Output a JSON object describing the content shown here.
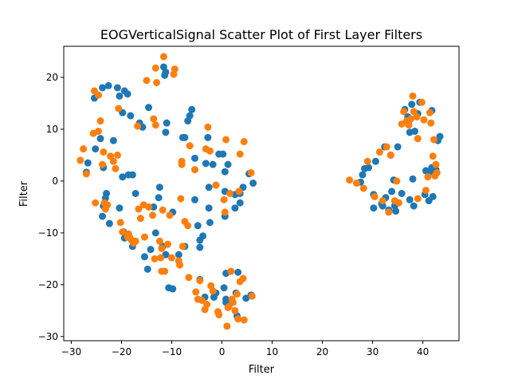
{
  "chart_data": {
    "type": "scatter",
    "title": "EOGVerticalSignal Scatter Plot of First Layer Filters",
    "xlabel": "Filter",
    "ylabel": "Filter",
    "xlim": [
      -31.5,
      47.2
    ],
    "ylim": [
      -30.8,
      26.0
    ],
    "xticks": [
      -30,
      -20,
      -10,
      0,
      10,
      20,
      30,
      40
    ],
    "yticks": [
      -30,
      -20,
      -10,
      0,
      10,
      20
    ],
    "grid": false,
    "legend": null,
    "series": [
      {
        "color": "#1f77b4",
        "points": [
          [
            -27.0,
            1.7
          ],
          [
            -26.7,
            3.5
          ],
          [
            -25.4,
            16.0
          ],
          [
            -25.2,
            6.2
          ],
          [
            -24.2,
            8.2
          ],
          [
            -23.8,
            18.0
          ],
          [
            -22.6,
            18.4
          ],
          [
            -23.6,
            2.6
          ],
          [
            -23.0,
            -2.4
          ],
          [
            -23.2,
            -3.3
          ],
          [
            -23.6,
            -4.8
          ],
          [
            -23.8,
            -6.8
          ],
          [
            -22.4,
            -8.2
          ],
          [
            -21.6,
            7.8
          ],
          [
            -20.8,
            18.0
          ],
          [
            -20.4,
            16.4
          ],
          [
            -19.8,
            13.2
          ],
          [
            -19.4,
            17.4
          ],
          [
            -18.8,
            16.8
          ],
          [
            -18.2,
            12.6
          ],
          [
            -18.6,
            1.2
          ],
          [
            -17.8,
            1.2
          ],
          [
            -19.8,
            0.8
          ],
          [
            -20.4,
            -5.2
          ],
          [
            -19.6,
            -9.8
          ],
          [
            -19.4,
            -11.0
          ],
          [
            -17.8,
            -12.6
          ],
          [
            -17.2,
            -2.4
          ],
          [
            -16.4,
            11.2
          ],
          [
            -15.8,
            10.4
          ],
          [
            -15.4,
            -14.6
          ],
          [
            -14.8,
            -17.0
          ],
          [
            -14.6,
            14.2
          ],
          [
            -14.2,
            -13.2
          ],
          [
            -13.6,
            -5.0
          ],
          [
            -13.2,
            -10.0
          ],
          [
            -12.6,
            -3.2
          ],
          [
            -12.4,
            -1.2
          ],
          [
            -11.6,
            22.0
          ],
          [
            -11.4,
            20.4
          ],
          [
            -11.2,
            21.0
          ],
          [
            -11.0,
            11.2
          ],
          [
            -11.2,
            9.4
          ],
          [
            -11.8,
            -12.6
          ],
          [
            -11.2,
            -14.2
          ],
          [
            -10.6,
            -20.6
          ],
          [
            -9.8,
            -6.0
          ],
          [
            -9.8,
            -20.8
          ],
          [
            -8.6,
            -14.2
          ],
          [
            -7.8,
            8.4
          ],
          [
            -7.4,
            8.4
          ],
          [
            -7.4,
            -12.6
          ],
          [
            -6.8,
            11.6
          ],
          [
            -6.4,
            12.6
          ],
          [
            -6.0,
            13.8
          ],
          [
            -5.4,
            4.4
          ],
          [
            -5.4,
            -3.6
          ],
          [
            -4.8,
            -8.6
          ],
          [
            -4.4,
            -19.0
          ],
          [
            -4.4,
            -11.4
          ],
          [
            -4.4,
            -12.8
          ],
          [
            -3.8,
            -10.6
          ],
          [
            -3.4,
            -22.4
          ],
          [
            -3.2,
            3.4
          ],
          [
            -2.8,
            8.4
          ],
          [
            -2.6,
            -1.2
          ],
          [
            -2.6,
            -5.2
          ],
          [
            -2.4,
            -8.0
          ],
          [
            -1.8,
            3.2
          ],
          [
            -1.6,
            -22.4
          ],
          [
            -1.2,
            -21.6
          ],
          [
            -0.6,
            5.2
          ],
          [
            0.2,
            5.2
          ],
          [
            0.6,
            1.8
          ],
          [
            0.6,
            -2.0
          ],
          [
            0.6,
            -6.8
          ],
          [
            0.8,
            -22.8
          ],
          [
            0.8,
            -17.8
          ],
          [
            0.4,
            -20.6
          ],
          [
            0.8,
            -23.4
          ],
          [
            1.2,
            3.2
          ],
          [
            2.6,
            -2.6
          ],
          [
            2.6,
            -5.2
          ],
          [
            2.8,
            -21.6
          ],
          [
            3.0,
            -26.0
          ],
          [
            3.2,
            -17.6
          ],
          [
            3.6,
            -2.4
          ],
          [
            3.6,
            -4.2
          ],
          [
            4.2,
            -1.2
          ],
          [
            4.8,
            -22.6
          ],
          [
            5.4,
            1.4
          ],
          [
            5.8,
            -22.0
          ],
          [
            6.2,
            -0.4
          ],
          [
            27.6,
            -0.2
          ],
          [
            28.0,
            1.2
          ],
          [
            28.4,
            2.4
          ],
          [
            29.2,
            2.6
          ],
          [
            30.2,
            -2.6
          ],
          [
            30.2,
            -5.2
          ],
          [
            30.6,
            3.8
          ],
          [
            31.8,
            -4.4
          ],
          [
            32.0,
            -4.8
          ],
          [
            32.4,
            6.6
          ],
          [
            32.6,
            -3.2
          ],
          [
            33.2,
            -5.6
          ],
          [
            33.6,
            5.0
          ],
          [
            33.8,
            -2.0
          ],
          [
            34.2,
            0.2
          ],
          [
            34.4,
            -4.8
          ],
          [
            34.6,
            -5.8
          ],
          [
            35.0,
            6.6
          ],
          [
            35.8,
            -2.4
          ],
          [
            36.4,
            13.8
          ],
          [
            37.0,
            12.4
          ],
          [
            37.2,
            11.6
          ],
          [
            37.4,
            9.4
          ],
          [
            37.4,
            -3.6
          ],
          [
            37.8,
            14.8
          ],
          [
            38.0,
            0.4
          ],
          [
            38.2,
            -4.8
          ],
          [
            38.4,
            9.6
          ],
          [
            38.8,
            12.4
          ],
          [
            39.0,
            13.0
          ],
          [
            39.4,
            15.2
          ],
          [
            40.4,
            -2.6
          ],
          [
            40.6,
            2.0
          ],
          [
            41.2,
            -3.8
          ],
          [
            41.6,
            1.8
          ],
          [
            41.8,
            13.6
          ],
          [
            41.8,
            2.6
          ],
          [
            42.0,
            -3.0
          ],
          [
            42.6,
            2.2
          ],
          [
            43.0,
            7.8
          ],
          [
            43.4,
            8.6
          ]
        ]
      },
      {
        "color": "#ff7f0e",
        "points": [
          [
            -28.2,
            4.0
          ],
          [
            -27.6,
            6.2
          ],
          [
            -27.0,
            1.4
          ],
          [
            -25.6,
            9.2
          ],
          [
            -25.4,
            17.4
          ],
          [
            -25.2,
            -4.2
          ],
          [
            -24.6,
            16.6
          ],
          [
            -24.6,
            9.6
          ],
          [
            -24.2,
            11.6
          ],
          [
            -23.8,
            3.2
          ],
          [
            -23.6,
            5.6
          ],
          [
            -23.4,
            -4.2
          ],
          [
            -23.2,
            -5.4
          ],
          [
            -22.8,
            -4.6
          ],
          [
            -22.2,
            4.8
          ],
          [
            -21.6,
            3.8
          ],
          [
            -21.2,
            2.4
          ],
          [
            -20.8,
            5.0
          ],
          [
            -20.6,
            14.0
          ],
          [
            -20.2,
            -8.0
          ],
          [
            -19.8,
            -9.8
          ],
          [
            -18.8,
            -10.8
          ],
          [
            -18.6,
            -10.2
          ],
          [
            -18.4,
            -10.8
          ],
          [
            -18.0,
            -11.4
          ],
          [
            -17.6,
            -12.0
          ],
          [
            -17.2,
            -11.6
          ],
          [
            -16.8,
            10.6
          ],
          [
            -16.6,
            -5.4
          ],
          [
            -16.2,
            -7.2
          ],
          [
            -15.6,
            -4.6
          ],
          [
            -15.4,
            -10.8
          ],
          [
            -15.0,
            19.4
          ],
          [
            -14.6,
            -5.0
          ],
          [
            -13.8,
            -6.6
          ],
          [
            -13.6,
            12.0
          ],
          [
            -13.4,
            -15.0
          ],
          [
            -13.2,
            10.8
          ],
          [
            -13.0,
            19.0
          ],
          [
            -13.2,
            21.8
          ],
          [
            -12.4,
            -11.6
          ],
          [
            -12.2,
            -14.8
          ],
          [
            -12.0,
            -17.4
          ],
          [
            -12.0,
            -13.0
          ],
          [
            -11.8,
            -5.6
          ],
          [
            -11.6,
            24.0
          ],
          [
            -11.4,
            -17.4
          ],
          [
            -10.8,
            -12.2
          ],
          [
            -10.4,
            -6.6
          ],
          [
            -10.0,
            -14.8
          ],
          [
            -9.6,
            20.6
          ],
          [
            -9.4,
            21.6
          ],
          [
            -8.6,
            -15.4
          ],
          [
            -8.4,
            -16.2
          ],
          [
            -8.2,
            -3.4
          ],
          [
            -8.0,
            3.2
          ],
          [
            -8.0,
            3.8
          ],
          [
            -7.8,
            -12.6
          ],
          [
            -7.4,
            -7.8
          ],
          [
            -6.8,
            -8.6
          ],
          [
            -6.6,
            -18.6
          ],
          [
            -6.4,
            6.8
          ],
          [
            -5.4,
            2.2
          ],
          [
            -5.2,
            -21.4
          ],
          [
            -4.8,
            -22.8
          ],
          [
            -4.4,
            -19.2
          ],
          [
            -4.0,
            -23.0
          ],
          [
            -3.4,
            -24.8
          ],
          [
            -3.2,
            6.2
          ],
          [
            -3.0,
            -23.8
          ],
          [
            -2.8,
            10.4
          ],
          [
            -2.4,
            5.8
          ],
          [
            -2.2,
            -20.2
          ],
          [
            -1.8,
            -21.2
          ],
          [
            -1.2,
            -0.8
          ],
          [
            -0.8,
            -25.2
          ],
          [
            -0.6,
            -25.8
          ],
          [
            0.4,
            -3.6
          ],
          [
            0.6,
            -6.0
          ],
          [
            0.8,
            8.0
          ],
          [
            1.0,
            -28.0
          ],
          [
            1.2,
            -24.4
          ],
          [
            1.4,
            -24.2
          ],
          [
            1.6,
            -2.4
          ],
          [
            1.8,
            -17.4
          ],
          [
            2.0,
            -22.8
          ],
          [
            2.2,
            -23.4
          ],
          [
            2.6,
            -25.0
          ],
          [
            3.0,
            -21.8
          ],
          [
            3.2,
            -26.6
          ],
          [
            3.4,
            -2.0
          ],
          [
            3.6,
            5.2
          ],
          [
            3.6,
            -19.4
          ],
          [
            4.2,
            -18.8
          ],
          [
            4.4,
            7.6
          ],
          [
            4.4,
            -26.8
          ],
          [
            5.8,
            1.6
          ],
          [
            6.0,
            -22.2
          ],
          [
            25.4,
            0.2
          ],
          [
            26.8,
            -0.4
          ],
          [
            28.2,
            -1.4
          ],
          [
            29.0,
            3.8
          ],
          [
            30.4,
            -3.0
          ],
          [
            31.4,
            5.6
          ],
          [
            32.0,
            -3.8
          ],
          [
            32.8,
            6.6
          ],
          [
            33.2,
            -6.0
          ],
          [
            33.6,
            5.0
          ],
          [
            34.4,
            -3.8
          ],
          [
            34.8,
            0.0
          ],
          [
            35.2,
            -4.2
          ],
          [
            35.8,
            11.0
          ],
          [
            36.2,
            13.4
          ],
          [
            36.8,
            11.6
          ],
          [
            37.2,
            10.8
          ],
          [
            37.6,
            12.0
          ],
          [
            38.0,
            16.4
          ],
          [
            38.2,
            13.4
          ],
          [
            38.8,
            12.4
          ],
          [
            39.0,
            -3.4
          ],
          [
            39.0,
            8.2
          ],
          [
            39.8,
            15.2
          ],
          [
            40.2,
            11.8
          ],
          [
            40.6,
            -1.8
          ],
          [
            41.0,
            0.8
          ],
          [
            41.4,
            13.2
          ],
          [
            41.6,
            11.2
          ],
          [
            42.0,
            4.8
          ],
          [
            42.2,
            8.0
          ],
          [
            42.4,
            1.0
          ],
          [
            42.6,
            3.2
          ],
          [
            42.8,
            1.6
          ]
        ]
      }
    ]
  }
}
